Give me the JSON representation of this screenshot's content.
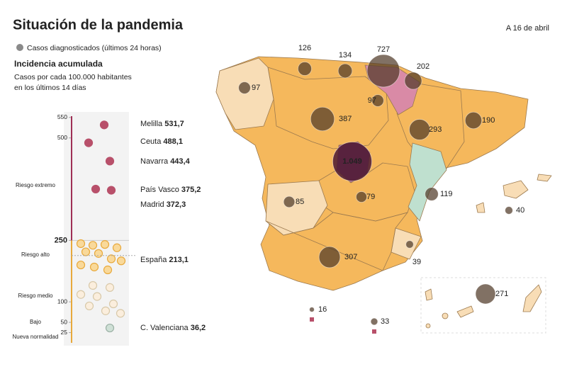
{
  "header": {
    "title": "Situación de la pandemia",
    "date": "A 16 de abril",
    "legend": "Casos diagnosticados (últimos 24 horas)",
    "subtitle": "Incidencia acumulada",
    "note": [
      "Casos por cada 100.000 habitantes",
      "en los últimos 14 días"
    ]
  },
  "scale": {
    "ylim": [
      0,
      560
    ],
    "ticks": [
      25,
      50,
      100,
      250,
      500,
      550
    ],
    "bands": [
      "Riesgo extremo",
      "Riesgo alto",
      "Riesgo medio",
      "Bajo",
      "Nueva normalidad"
    ],
    "highlights": [
      {
        "name": "Melilla",
        "value": 531.7,
        "label": "531,7"
      },
      {
        "name": "Ceuta",
        "value": 488.1,
        "label": "488,1"
      },
      {
        "name": "Navarra",
        "value": 443.4,
        "label": "443,4"
      },
      {
        "name": "País Vasco",
        "value": 375.2,
        "label": "375,2"
      },
      {
        "name": "Madrid",
        "value": 372.3,
        "label": "372,3"
      },
      {
        "name": "España",
        "value": 213.1,
        "label": "213,1"
      },
      {
        "name": "C. Valenciana",
        "value": 36.2,
        "label": "36,2"
      }
    ],
    "other_regions": [
      242,
      238,
      240,
      232,
      222,
      218,
      205,
      200,
      190,
      185,
      178,
      140,
      135,
      118,
      113,
      95,
      90,
      78,
      72
    ]
  },
  "map": {
    "values": [
      126,
      134,
      727,
      202,
      97,
      97,
      387,
      293,
      190,
      {
        "value": 1049,
        "label": "1.049"
      },
      79,
      85,
      119,
      40,
      307,
      39,
      271,
      16,
      33
    ]
  }
}
